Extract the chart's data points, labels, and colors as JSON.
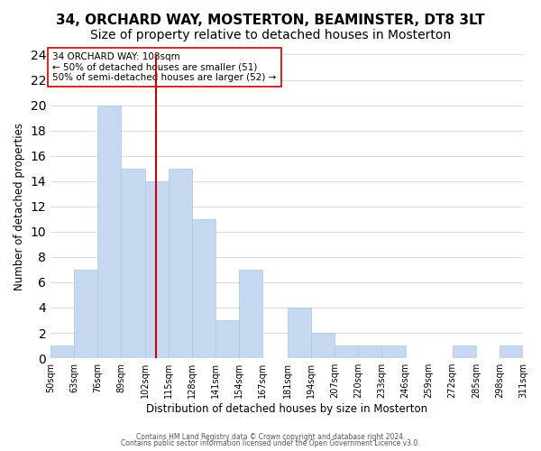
{
  "title": "34, ORCHARD WAY, MOSTERTON, BEAMINSTER, DT8 3LT",
  "subtitle": "Size of property relative to detached houses in Mosterton",
  "xlabel": "Distribution of detached houses by size in Mosterton",
  "ylabel": "Number of detached properties",
  "bar_color": "#c5d8f0",
  "bar_edge_color": "#a8c8e8",
  "bin_edges": [
    50,
    63,
    76,
    89,
    102,
    115,
    128,
    141,
    154,
    167,
    181,
    194,
    207,
    220,
    233,
    246,
    259,
    272,
    285,
    298,
    311
  ],
  "counts": [
    1,
    7,
    20,
    15,
    14,
    15,
    11,
    3,
    7,
    0,
    4,
    2,
    1,
    1,
    1,
    0,
    0,
    1,
    0,
    1
  ],
  "property_line_x": 108,
  "property_line_color": "#cc0000",
  "annotation_line1": "34 ORCHARD WAY: 108sqm",
  "annotation_line2": "← 50% of detached houses are smaller (51)",
  "annotation_line3": "50% of semi-detached houses are larger (52) →",
  "annotation_box_color": "#ffffff",
  "annotation_box_edge": "#cc0000",
  "ylim": [
    0,
    24
  ],
  "yticks": [
    0,
    2,
    4,
    6,
    8,
    10,
    12,
    14,
    16,
    18,
    20,
    22,
    24
  ],
  "xtick_labels": [
    "50sqm",
    "63sqm",
    "76sqm",
    "89sqm",
    "102sqm",
    "115sqm",
    "128sqm",
    "141sqm",
    "154sqm",
    "167sqm",
    "181sqm",
    "194sqm",
    "207sqm",
    "220sqm",
    "233sqm",
    "246sqm",
    "259sqm",
    "272sqm",
    "285sqm",
    "298sqm",
    "311sqm"
  ],
  "footer1": "Contains HM Land Registry data © Crown copyright and database right 2024.",
  "footer2": "Contains public sector information licensed under the Open Government Licence v3.0.",
  "background_color": "#ffffff",
  "grid_color": "#dddddd",
  "title_fontsize": 11,
  "subtitle_fontsize": 10
}
